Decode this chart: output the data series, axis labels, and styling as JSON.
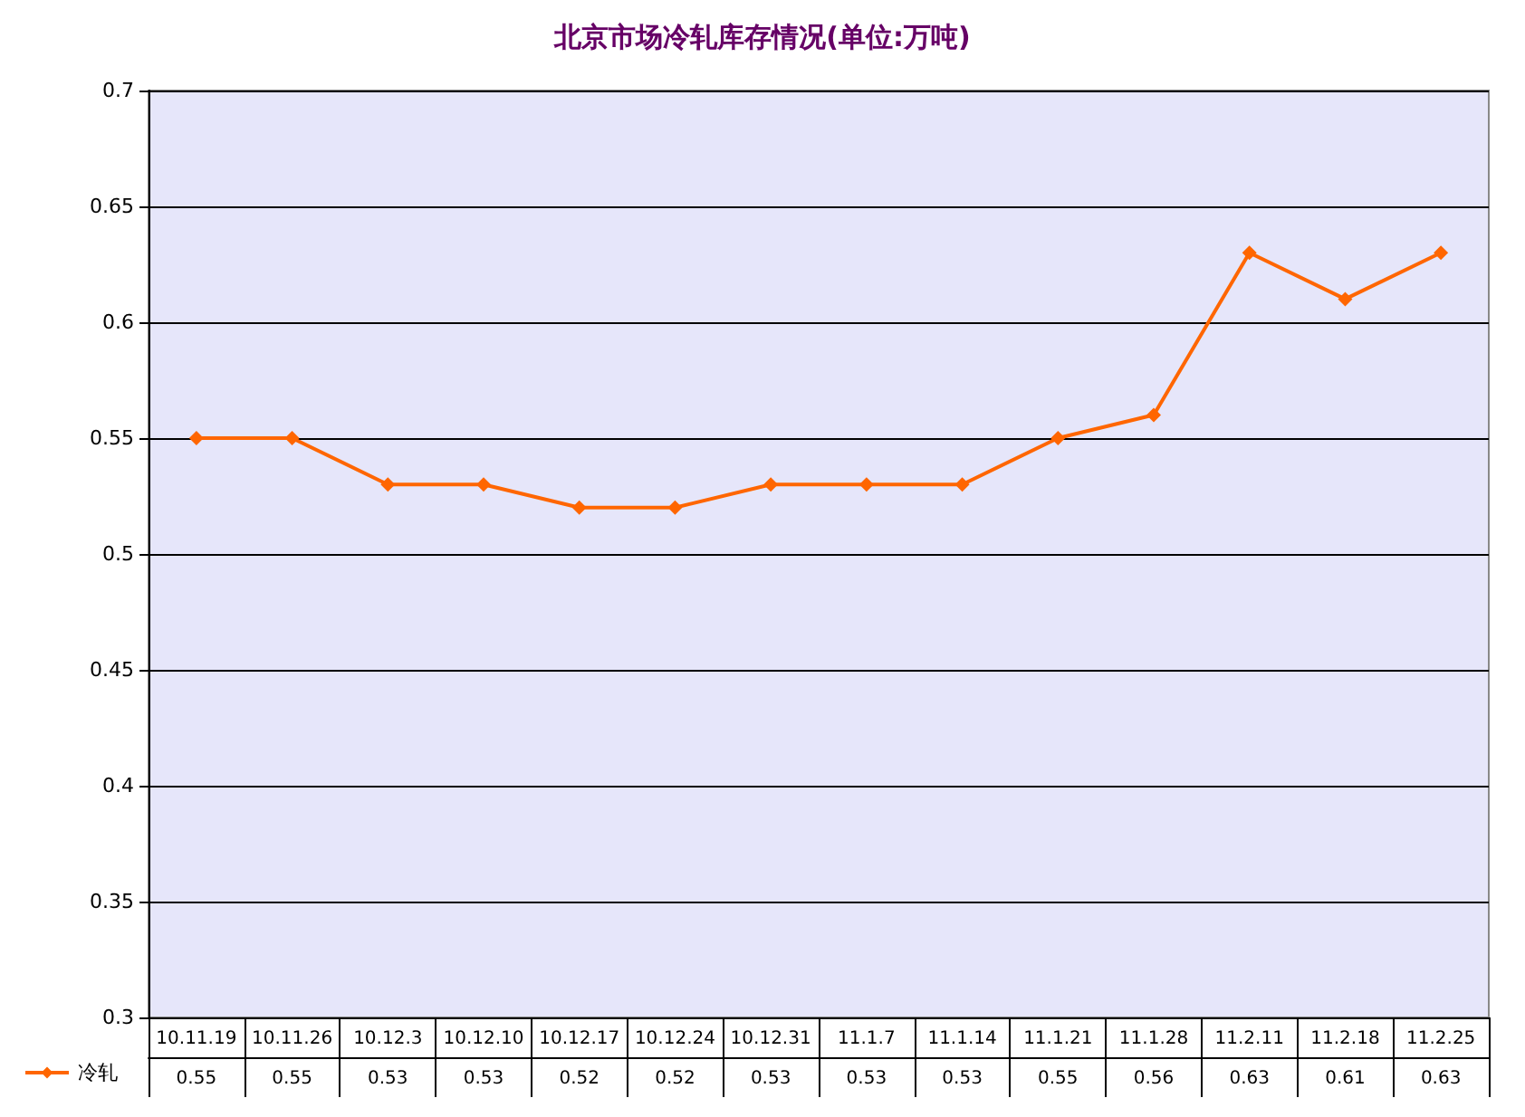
{
  "chart_data": {
    "type": "line",
    "title": "北京市场冷轧库存情况(单位:万吨)",
    "categories": [
      "10.11.19",
      "10.11.26",
      "10.12.3",
      "10.12.10",
      "10.12.17",
      "10.12.24",
      "10.12.31",
      "11.1.7",
      "11.1.14",
      "11.1.21",
      "11.1.28",
      "11.2.11",
      "11.2.18",
      "11.2.25"
    ],
    "series": [
      {
        "name": "冷轧",
        "color": "#ff6600",
        "values": [
          0.55,
          0.55,
          0.53,
          0.53,
          0.52,
          0.52,
          0.53,
          0.53,
          0.53,
          0.55,
          0.56,
          0.63,
          0.61,
          0.63
        ]
      }
    ],
    "ylim": [
      0.3,
      0.7
    ],
    "yticks": [
      0.3,
      0.35,
      0.4,
      0.45,
      0.5,
      0.55,
      0.6,
      0.65,
      0.7
    ],
    "grid": "y",
    "legend": "bottom left",
    "marker": "diamond",
    "line_style": "solid",
    "data_labels": true
  }
}
